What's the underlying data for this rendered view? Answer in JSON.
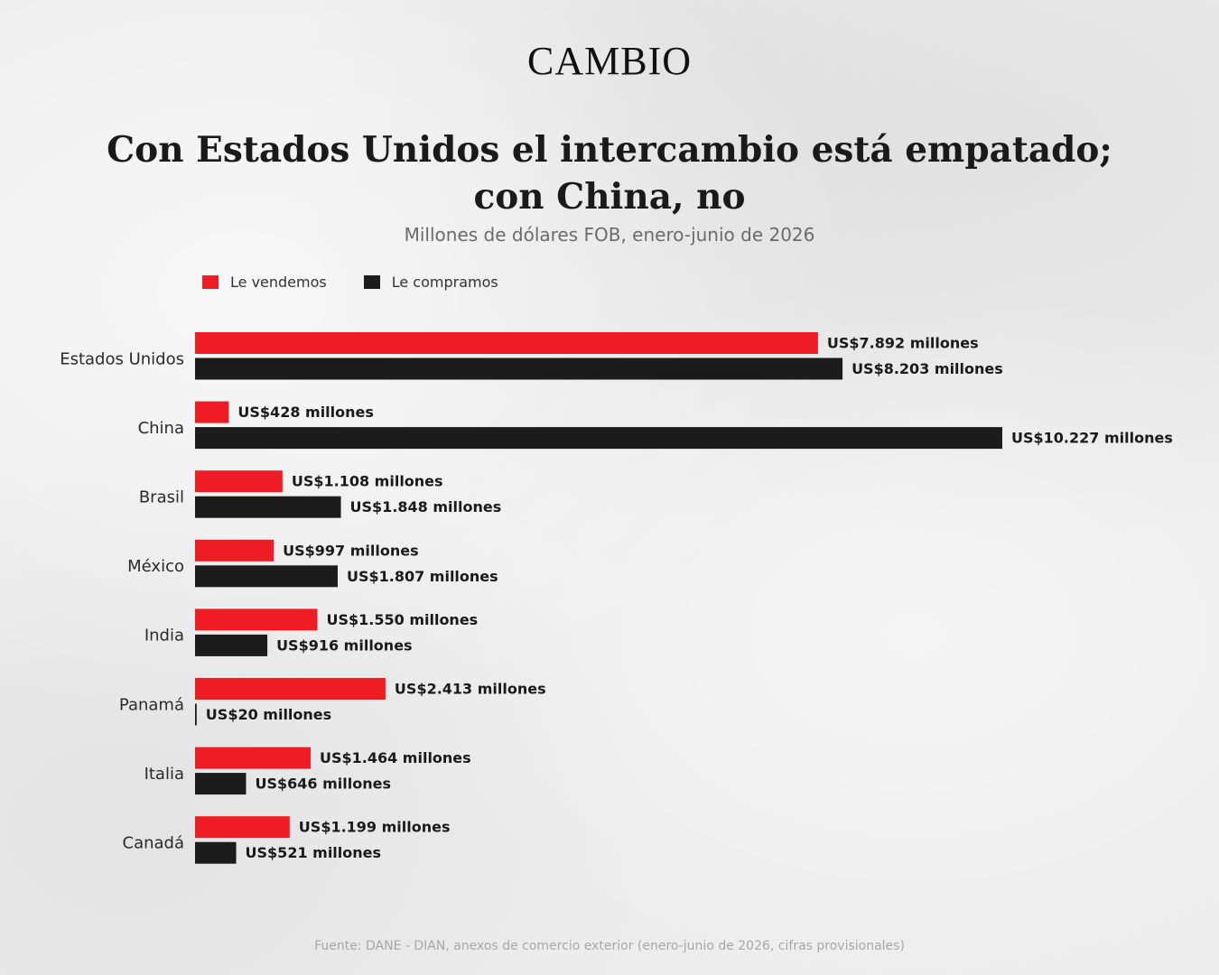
{
  "brand": "CAMBIO",
  "colors": {
    "sell": "#ee1c23",
    "buy": "#1c1c1c"
  },
  "chart_data": {
    "type": "bar",
    "orientation": "horizontal",
    "title": "Con Estados Unidos el intercambio está empatado; con China, no",
    "subtitle": "Millones de dólares FOB, enero-junio de 2026",
    "categories": [
      "Estados Unidos",
      "China",
      "Brasil",
      "México",
      "India",
      "Panamá",
      "Italia",
      "Canadá"
    ],
    "series": [
      {
        "name": "Le vendemos",
        "values": [
          7892,
          428,
          1108,
          997,
          1550,
          2413,
          1464,
          1199
        ],
        "labels": [
          "US$7.892 millones",
          "US$428 millones",
          "US$1.108 millones",
          "US$997 millones",
          "US$1.550 millones",
          "US$2.413 millones",
          "US$1.464 millones",
          "US$1.199 millones"
        ]
      },
      {
        "name": "Le compramos",
        "values": [
          8203,
          10227,
          1848,
          1807,
          916,
          20,
          646,
          521
        ],
        "labels": [
          "US$8.203 millones",
          "US$10.227 millones",
          "US$1.848 millones",
          "US$1.807 millones",
          "US$916 millones",
          "US$20 millones",
          "US$646 millones",
          "US$521 millones"
        ]
      }
    ],
    "legend_position": "top-left",
    "grid": false,
    "source": "Fuente: DANE - DIAN, anexos de comercio exterior (enero-junio de 2026, cifras provisionales)"
  }
}
